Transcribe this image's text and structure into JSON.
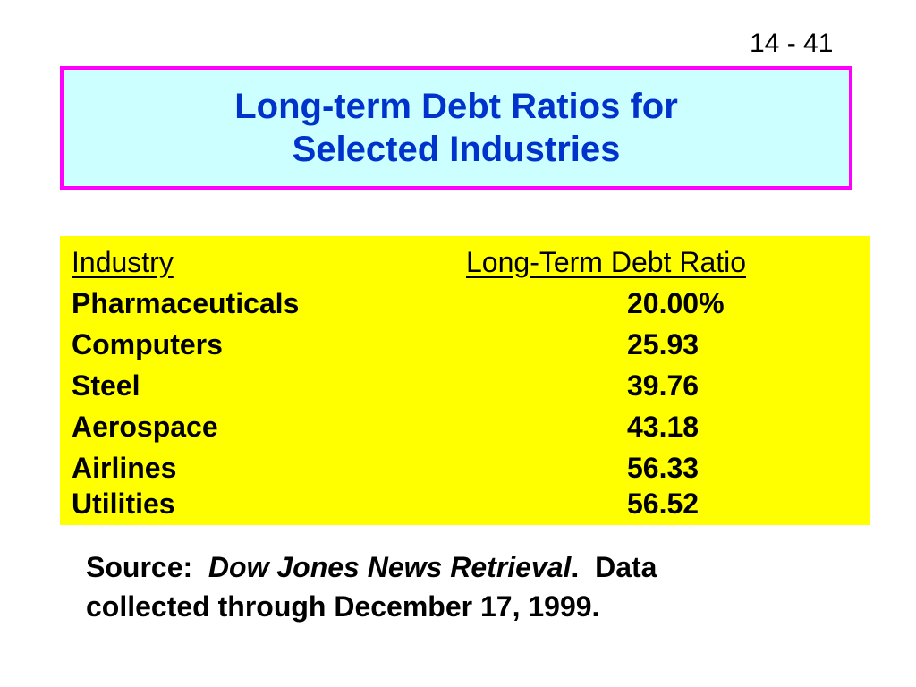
{
  "page_number": "14 - 41",
  "title": {
    "line1": "Long-term Debt Ratios for",
    "line2": "Selected Industries"
  },
  "table": {
    "headers": {
      "industry": "Industry",
      "ratio": "Long-Term Debt Ratio"
    },
    "rows": [
      {
        "industry": "Pharmaceuticals",
        "ratio": "20.00%"
      },
      {
        "industry": "Computers",
        "ratio": "25.93"
      },
      {
        "industry": "Steel",
        "ratio": "39.76"
      },
      {
        "industry": "Aerospace",
        "ratio": "43.18"
      },
      {
        "industry": "Airlines",
        "ratio": "56.33"
      },
      {
        "industry": "Utilities",
        "ratio": "56.52"
      }
    ]
  },
  "source": {
    "label": "Source:",
    "publication": "Dow Jones News Retrieval",
    "line1_end": "Data",
    "line2": "collected through December 17, 1999."
  },
  "colors": {
    "title_text": "#0033cc",
    "title_background": "#ccffff",
    "title_border": "#ff00ff",
    "table_background": "#ffff00"
  }
}
